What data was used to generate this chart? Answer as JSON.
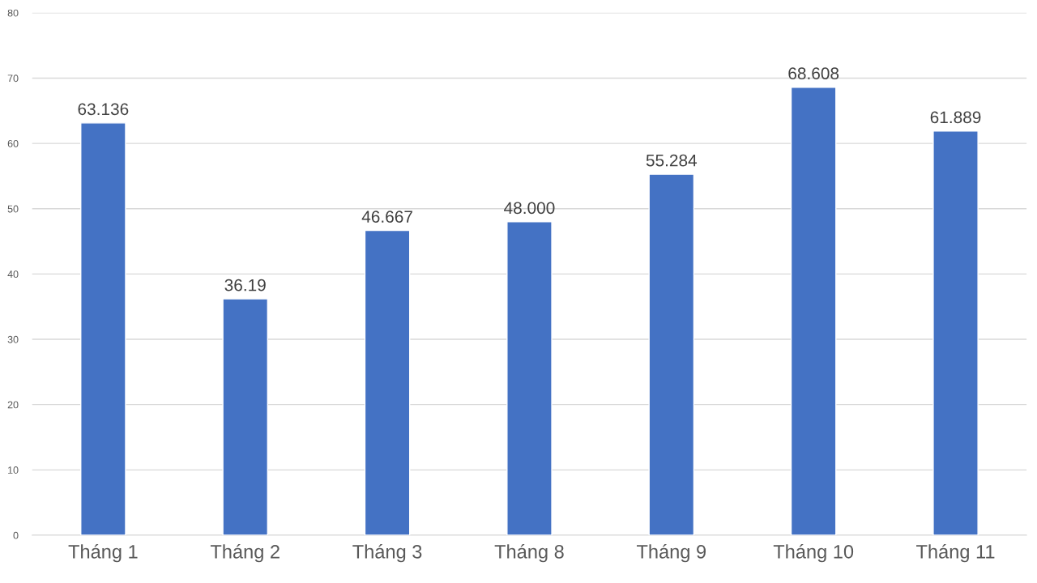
{
  "chart_data": {
    "type": "bar",
    "categories": [
      "Tháng 1",
      "Tháng 2",
      "Tháng 3",
      "Tháng 8",
      "Tháng 9",
      "Tháng 10",
      "Tháng 11"
    ],
    "values": [
      63.136,
      36.19,
      46.667,
      48,
      55.284,
      68.608,
      61.889
    ],
    "value_labels": [
      "63.136",
      "36.19",
      "46.667",
      "48.000",
      "55.284",
      "68.608",
      "61.889"
    ],
    "color": "#4472c4",
    "ylim": [
      0,
      80
    ],
    "yticks": [
      0,
      10,
      20,
      30,
      40,
      50,
      60,
      70,
      80
    ],
    "grid": "y"
  }
}
